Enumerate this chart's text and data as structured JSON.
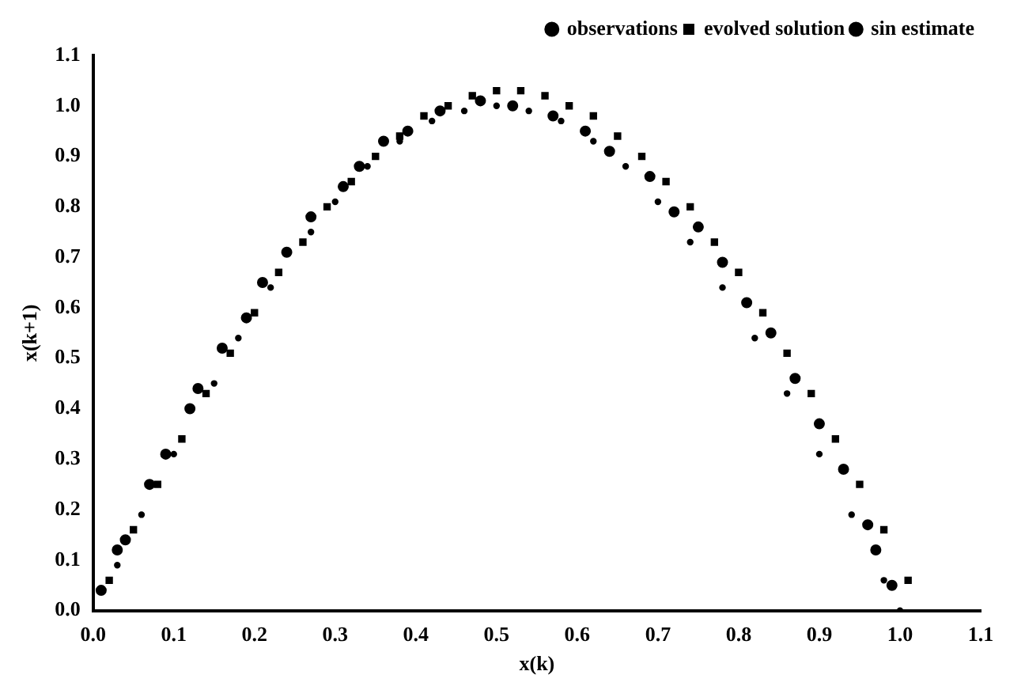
{
  "chart_data": {
    "type": "scatter",
    "xlabel": "x(k)",
    "ylabel": "x(k+1)",
    "legend": "top right",
    "grid": false,
    "xlim": [
      0,
      1.1
    ],
    "ylim": [
      0,
      1.1
    ],
    "xticks": [
      {
        "value": 0,
        "label": "0.0"
      },
      0.1,
      0.2,
      0.3,
      0.4,
      0.5,
      0.6,
      0.7,
      0.8,
      0.9,
      {
        "value": 1,
        "label": "1.0"
      },
      1.1
    ],
    "yticks": [
      {
        "value": 0,
        "label": "0.0"
      },
      0.1,
      0.2,
      0.3,
      0.4,
      0.5,
      0.6,
      0.7,
      0.8,
      0.9,
      {
        "value": 1,
        "label": "1.0"
      },
      1.1
    ],
    "series": [
      {
        "name": "observations",
        "color": "#000000",
        "marker": "circle",
        "x": [
          0.01,
          0.03,
          0.04,
          0.07,
          0.09,
          0.12,
          0.13,
          0.16,
          0.19,
          0.21,
          0.24,
          0.27,
          0.31,
          0.33,
          0.36,
          0.39,
          0.43,
          0.48,
          0.52,
          0.57,
          0.61,
          0.64,
          0.69,
          0.72,
          0.75,
          0.78,
          0.81,
          0.84,
          0.87,
          0.9,
          0.93,
          0.96,
          0.97,
          0.99
        ],
        "values": [
          0.04,
          0.12,
          0.14,
          0.25,
          0.31,
          0.4,
          0.44,
          0.52,
          0.58,
          0.65,
          0.71,
          0.78,
          0.84,
          0.88,
          0.93,
          0.95,
          0.99,
          1.01,
          1.0,
          0.98,
          0.95,
          0.91,
          0.86,
          0.79,
          0.76,
          0.69,
          0.61,
          0.55,
          0.46,
          0.37,
          0.28,
          0.17,
          0.12,
          0.05
        ]
      },
      {
        "name": "evolved solution",
        "color": "#000000",
        "marker": "square",
        "x": [
          0.02,
          0.05,
          0.08,
          0.11,
          0.14,
          0.17,
          0.2,
          0.23,
          0.26,
          0.29,
          0.32,
          0.35,
          0.38,
          0.41,
          0.44,
          0.47,
          0.5,
          0.53,
          0.56,
          0.59,
          0.62,
          0.65,
          0.68,
          0.71,
          0.74,
          0.77,
          0.8,
          0.83,
          0.86,
          0.89,
          0.92,
          0.95,
          0.98,
          1.01
        ],
        "values": [
          0.06,
          0.16,
          0.25,
          0.34,
          0.43,
          0.51,
          0.59,
          0.67,
          0.73,
          0.8,
          0.85,
          0.9,
          0.94,
          0.98,
          1.0,
          1.02,
          1.03,
          1.03,
          1.02,
          1.0,
          0.98,
          0.94,
          0.9,
          0.85,
          0.8,
          0.73,
          0.67,
          0.59,
          0.51,
          0.43,
          0.34,
          0.25,
          0.16,
          0.06
        ]
      },
      {
        "name": "sin estimate",
        "color": "#000000",
        "marker": "circle",
        "x": [
          0.03,
          0.06,
          0.1,
          0.15,
          0.18,
          0.22,
          0.27,
          0.3,
          0.34,
          0.38,
          0.42,
          0.46,
          0.5,
          0.54,
          0.58,
          0.62,
          0.66,
          0.7,
          0.74,
          0.78,
          0.82,
          0.86,
          0.9,
          0.94,
          0.98,
          1.0
        ],
        "values": [
          0.09,
          0.19,
          0.31,
          0.45,
          0.54,
          0.64,
          0.75,
          0.81,
          0.88,
          0.93,
          0.97,
          0.99,
          1.0,
          0.99,
          0.97,
          0.93,
          0.88,
          0.81,
          0.73,
          0.64,
          0.54,
          0.43,
          0.31,
          0.19,
          0.06,
          0.0
        ]
      }
    ]
  }
}
